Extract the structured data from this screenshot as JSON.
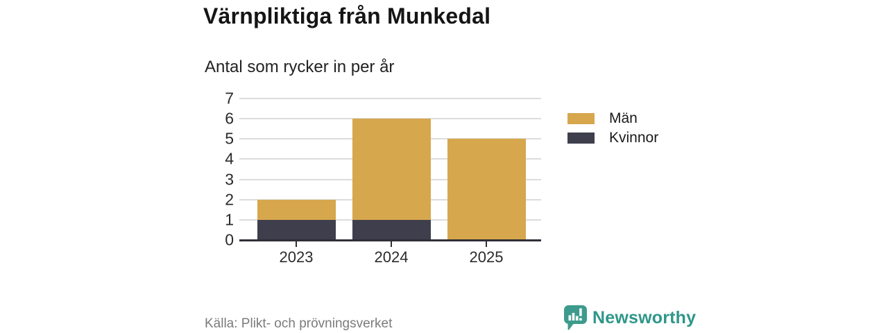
{
  "header": {
    "title": "Värnpliktiga från Munkedal",
    "subtitle": "Antal som rycker in per år"
  },
  "chart_data": {
    "type": "bar",
    "stacked": true,
    "title": "Värnpliktiga från Munkedal",
    "subtitle": "Antal som rycker in per år",
    "categories": [
      "2023",
      "2024",
      "2025"
    ],
    "series": [
      {
        "name": "Kvinnor",
        "color": "#3E3E4D",
        "values": [
          1,
          1,
          0
        ]
      },
      {
        "name": "Män",
        "color": "#D6A74D",
        "values": [
          1,
          5,
          5
        ]
      }
    ],
    "totals": [
      2,
      6,
      5
    ],
    "legend_order": [
      "Män",
      "Kvinnor"
    ],
    "legend_position": "right",
    "xlabel": "",
    "ylabel": "",
    "ylim": [
      0,
      7
    ],
    "yticks": [
      0,
      1,
      2,
      3,
      4,
      5,
      6,
      7
    ],
    "grid": true
  },
  "footer": {
    "source": "Källa: Plikt- och prövningsverket",
    "brand": "Newsworthy"
  },
  "colors": {
    "men": "#D6A74D",
    "women": "#3E3E4D",
    "axis": "#2F2F38",
    "grid": "#DCDCDC",
    "title_text": "#151515",
    "source_text": "#7B7B7B",
    "brand_teal": "#38998B"
  }
}
